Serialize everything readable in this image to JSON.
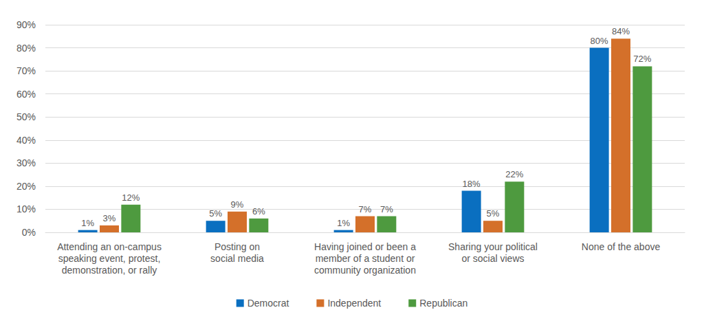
{
  "chart_data": {
    "type": "bar",
    "categories": [
      "Attending an on-campus\nspeaking event, protest,\ndemonstration, or rally",
      "Posting on\nsocial media",
      "Having joined or been a\nmember of a student or\ncommunity organization",
      "Sharing your political\nor social views",
      "None of the above"
    ],
    "series": [
      {
        "name": "Democrat",
        "color": "#0a6fc0",
        "values": [
          1,
          5,
          1,
          18,
          80
        ],
        "value_labels": [
          "1%",
          "5%",
          "1%",
          "18%",
          "80%"
        ]
      },
      {
        "name": "Independent",
        "color": "#d4702a",
        "values": [
          3,
          9,
          7,
          5,
          84
        ],
        "value_labels": [
          "3%",
          "9%",
          "7%",
          "5%",
          "84%"
        ]
      },
      {
        "name": "Republican",
        "color": "#4e9a3f",
        "values": [
          12,
          6,
          7,
          22,
          72
        ],
        "value_labels": [
          "12%",
          "6%",
          "7%",
          "22%",
          "72%"
        ]
      }
    ],
    "ylim": [
      0,
      90
    ],
    "yticks": [
      {
        "value": 0,
        "label": "0%"
      },
      {
        "value": 10,
        "label": "10%"
      },
      {
        "value": 20,
        "label": "20%"
      },
      {
        "value": 30,
        "label": "30%"
      },
      {
        "value": 40,
        "label": "40%"
      },
      {
        "value": 50,
        "label": "50%"
      },
      {
        "value": 60,
        "label": "60%"
      },
      {
        "value": 70,
        "label": "70%"
      },
      {
        "value": 80,
        "label": "80%"
      },
      {
        "value": 90,
        "label": "90%"
      }
    ],
    "grid": true,
    "legend": "bottom",
    "data_labels": true
  }
}
